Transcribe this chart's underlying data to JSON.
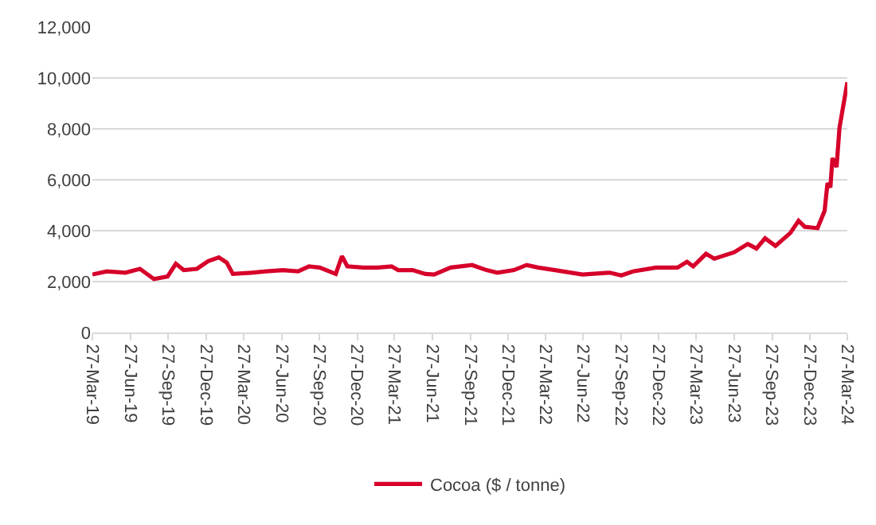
{
  "chart_data": {
    "type": "line",
    "x": [
      "2019-03-27",
      "2019-05-01",
      "2019-06-15",
      "2019-07-20",
      "2019-08-23",
      "2019-09-25",
      "2019-10-15",
      "2019-11-03",
      "2019-12-05",
      "2020-01-01",
      "2020-01-27",
      "2020-02-15",
      "2020-03-01",
      "2020-04-15",
      "2020-05-20",
      "2020-06-30",
      "2020-08-06",
      "2020-09-01",
      "2020-09-27",
      "2020-11-05",
      "2020-11-20",
      "2020-12-03",
      "2021-01-10",
      "2021-02-15",
      "2021-03-20",
      "2021-04-05",
      "2021-05-10",
      "2021-06-10",
      "2021-07-01",
      "2021-08-10",
      "2021-10-01",
      "2021-11-05",
      "2021-12-01",
      "2022-01-10",
      "2022-02-10",
      "2022-03-10",
      "2022-04-20",
      "2022-06-25",
      "2022-08-30",
      "2022-09-27",
      "2022-10-25",
      "2022-12-20",
      "2023-02-10",
      "2023-03-05",
      "2023-03-20",
      "2023-04-20",
      "2023-05-10",
      "2023-06-27",
      "2023-07-30",
      "2023-08-20",
      "2023-09-10",
      "2023-10-05",
      "2023-11-10",
      "2023-11-30",
      "2023-12-15",
      "2024-01-15",
      "2024-02-01",
      "2024-02-08",
      "2024-02-15",
      "2024-02-20",
      "2024-03-01",
      "2024-03-08",
      "2024-03-27"
    ],
    "series": [
      {
        "name": "Cocoa ($ / tonne)",
        "color": "#d6002a",
        "values": [
          2280,
          2400,
          2350,
          2500,
          2100,
          2200,
          2700,
          2450,
          2500,
          2800,
          2950,
          2750,
          2300,
          2350,
          2400,
          2450,
          2400,
          2600,
          2550,
          2300,
          3000,
          2600,
          2550,
          2550,
          2600,
          2450,
          2450,
          2300,
          2280,
          2550,
          2650,
          2450,
          2350,
          2450,
          2650,
          2550,
          2450,
          2280,
          2350,
          2240,
          2400,
          2550,
          2550,
          2780,
          2600,
          3090,
          2900,
          3150,
          3480,
          3300,
          3700,
          3400,
          3910,
          4390,
          4150,
          4100,
          4780,
          5870,
          5700,
          6850,
          6500,
          8040,
          9830
        ]
      }
    ],
    "xlim": [
      "2019-03-27",
      "2024-03-27"
    ],
    "xticks": [
      {
        "value": "2019-03-27",
        "label": "27-Mar-19"
      },
      {
        "value": "2019-06-27",
        "label": "27-Jun-19"
      },
      {
        "value": "2019-09-27",
        "label": "27-Sep-19"
      },
      {
        "value": "2019-12-27",
        "label": "27-Dec-19"
      },
      {
        "value": "2020-03-27",
        "label": "27-Mar-20"
      },
      {
        "value": "2020-06-27",
        "label": "27-Jun-20"
      },
      {
        "value": "2020-09-27",
        "label": "27-Sep-20"
      },
      {
        "value": "2020-12-27",
        "label": "27-Dec-20"
      },
      {
        "value": "2021-03-27",
        "label": "27-Mar-21"
      },
      {
        "value": "2021-06-27",
        "label": "27-Jun-21"
      },
      {
        "value": "2021-09-27",
        "label": "27-Sep-21"
      },
      {
        "value": "2021-12-27",
        "label": "27-Dec-21"
      },
      {
        "value": "2022-03-27",
        "label": "27-Mar-22"
      },
      {
        "value": "2022-06-27",
        "label": "27-Jun-22"
      },
      {
        "value": "2022-09-27",
        "label": "27-Sep-22"
      },
      {
        "value": "2022-12-27",
        "label": "27-Dec-22"
      },
      {
        "value": "2023-03-27",
        "label": "27-Mar-23"
      },
      {
        "value": "2023-06-27",
        "label": "27-Jun-23"
      },
      {
        "value": "2023-09-27",
        "label": "27-Sep-23"
      },
      {
        "value": "2023-12-27",
        "label": "27-Dec-23"
      },
      {
        "value": "2024-03-27",
        "label": "27-Mar-24"
      }
    ],
    "ylim": [
      0,
      12000
    ],
    "yticks": [
      {
        "value": 0,
        "label": "0"
      },
      {
        "value": 2000,
        "label": "2,000"
      },
      {
        "value": 4000,
        "label": "4,000"
      },
      {
        "value": 6000,
        "label": "6,000"
      },
      {
        "value": 8000,
        "label": "8,000"
      },
      {
        "value": 10000,
        "label": "10,000"
      },
      {
        "value": 12000,
        "label": "12,000"
      }
    ],
    "grid": "y",
    "legend": "bottom",
    "line_style": "solid"
  }
}
